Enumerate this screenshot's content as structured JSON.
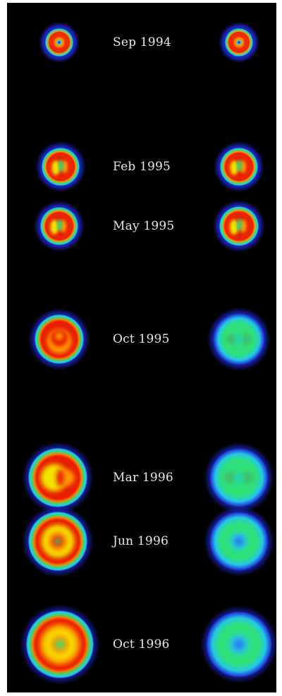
{
  "scans": [
    {
      "date": "Sep 1994",
      "left": {
        "kind": "warm",
        "core": "small-dot"
      },
      "right": {
        "kind": "warm",
        "core": "small-dot"
      }
    },
    {
      "date": "Feb 1995",
      "left": {
        "kind": "warm",
        "core": "split"
      },
      "right": {
        "kind": "warm",
        "core": "split"
      }
    },
    {
      "date": "May 1995",
      "left": {
        "kind": "warm",
        "core": "split"
      },
      "right": {
        "kind": "warm",
        "core": "split"
      }
    },
    {
      "date": "Oct 1995",
      "left": {
        "kind": "warm",
        "core": "crescent"
      },
      "right": {
        "kind": "cool",
        "core": "faint"
      }
    },
    {
      "date": "Mar 1996",
      "left": {
        "kind": "warm",
        "core": "bright"
      },
      "right": {
        "kind": "cool",
        "core": "faint"
      }
    },
    {
      "date": "Jun 1996",
      "left": {
        "kind": "warm",
        "core": "ring"
      },
      "right": {
        "kind": "cool",
        "core": "dot"
      }
    },
    {
      "date": "Oct 1996",
      "left": {
        "kind": "warm",
        "core": "ring-bright"
      },
      "right": {
        "kind": "cool",
        "core": "dot"
      }
    }
  ],
  "palette": {
    "background": "#000000",
    "blue": "#1f2bd6",
    "cyan": "#25c8e6",
    "green": "#2fe07a",
    "yellow": "#f2e200",
    "orange": "#ff9a00",
    "red": "#e81a00",
    "text": "#e6e6e6"
  }
}
